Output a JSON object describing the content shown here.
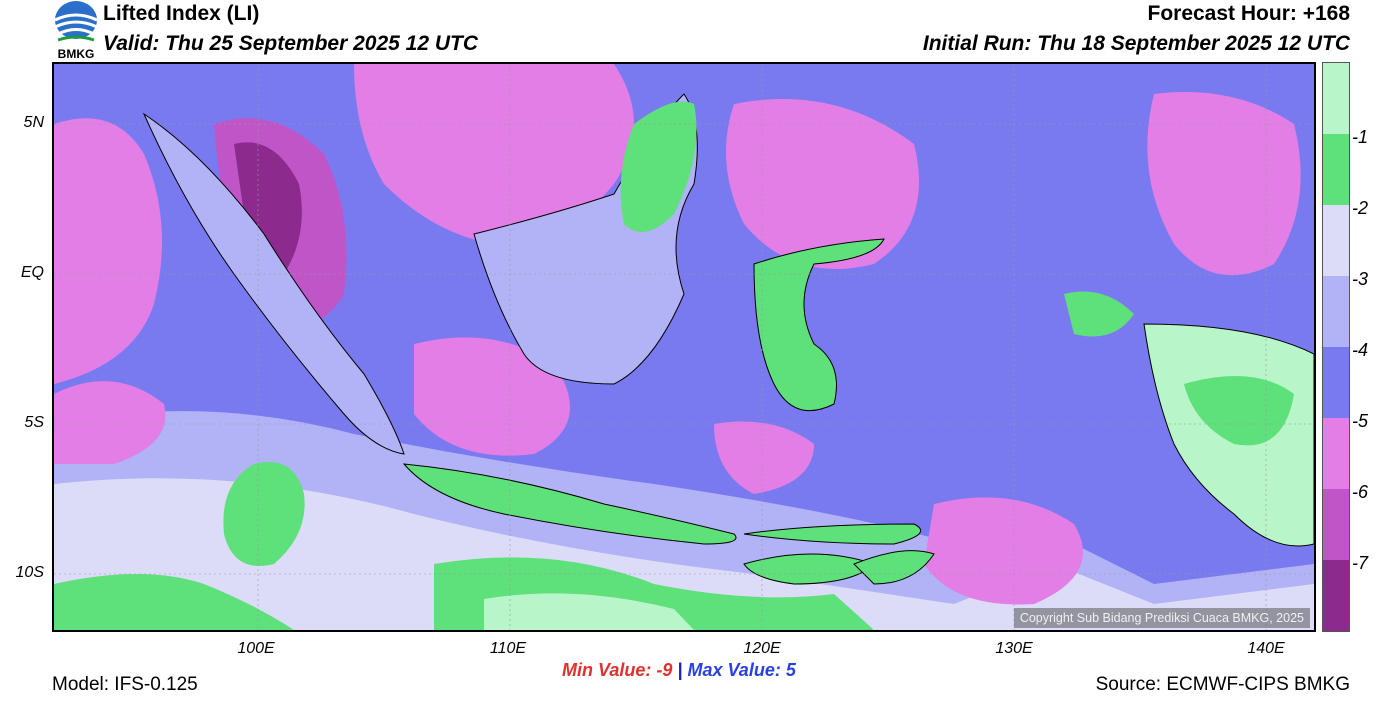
{
  "header": {
    "title": "Lifted Index (LI)",
    "valid": "Valid: Thu 25 September 2025 12 UTC",
    "forecast_hour": "Forecast Hour: +168",
    "initial_run": "Initial Run: Thu 18 September 2025 12 UTC",
    "logo_text": "BMKG"
  },
  "axes": {
    "y_ticks": [
      "5N",
      "EQ",
      "5S",
      "10S"
    ],
    "x_ticks": [
      "100E",
      "110E",
      "120E",
      "130E",
      "140E"
    ]
  },
  "colorbar": {
    "labels": [
      "-1",
      "-2",
      "-3",
      "-4",
      "-5",
      "-6",
      "-7"
    ],
    "colors": [
      "#b8f5c8",
      "#5ee07a",
      "#dcdcf8",
      "#b2b2f6",
      "#7a7af0",
      "#e27ee6",
      "#c055c8",
      "#8c2a8e"
    ]
  },
  "stats": {
    "min_label": "Min Value:",
    "min_value": "-9",
    "separator": "|",
    "max_label": "Max Value:",
    "max_value": "5"
  },
  "footer": {
    "model": "Model: IFS-0.125",
    "source": "Source: ECMWF-CIPS BMKG",
    "copyright": "Copyright Sub Bidang Prediksi Cuaca BMKG, 2025"
  }
}
